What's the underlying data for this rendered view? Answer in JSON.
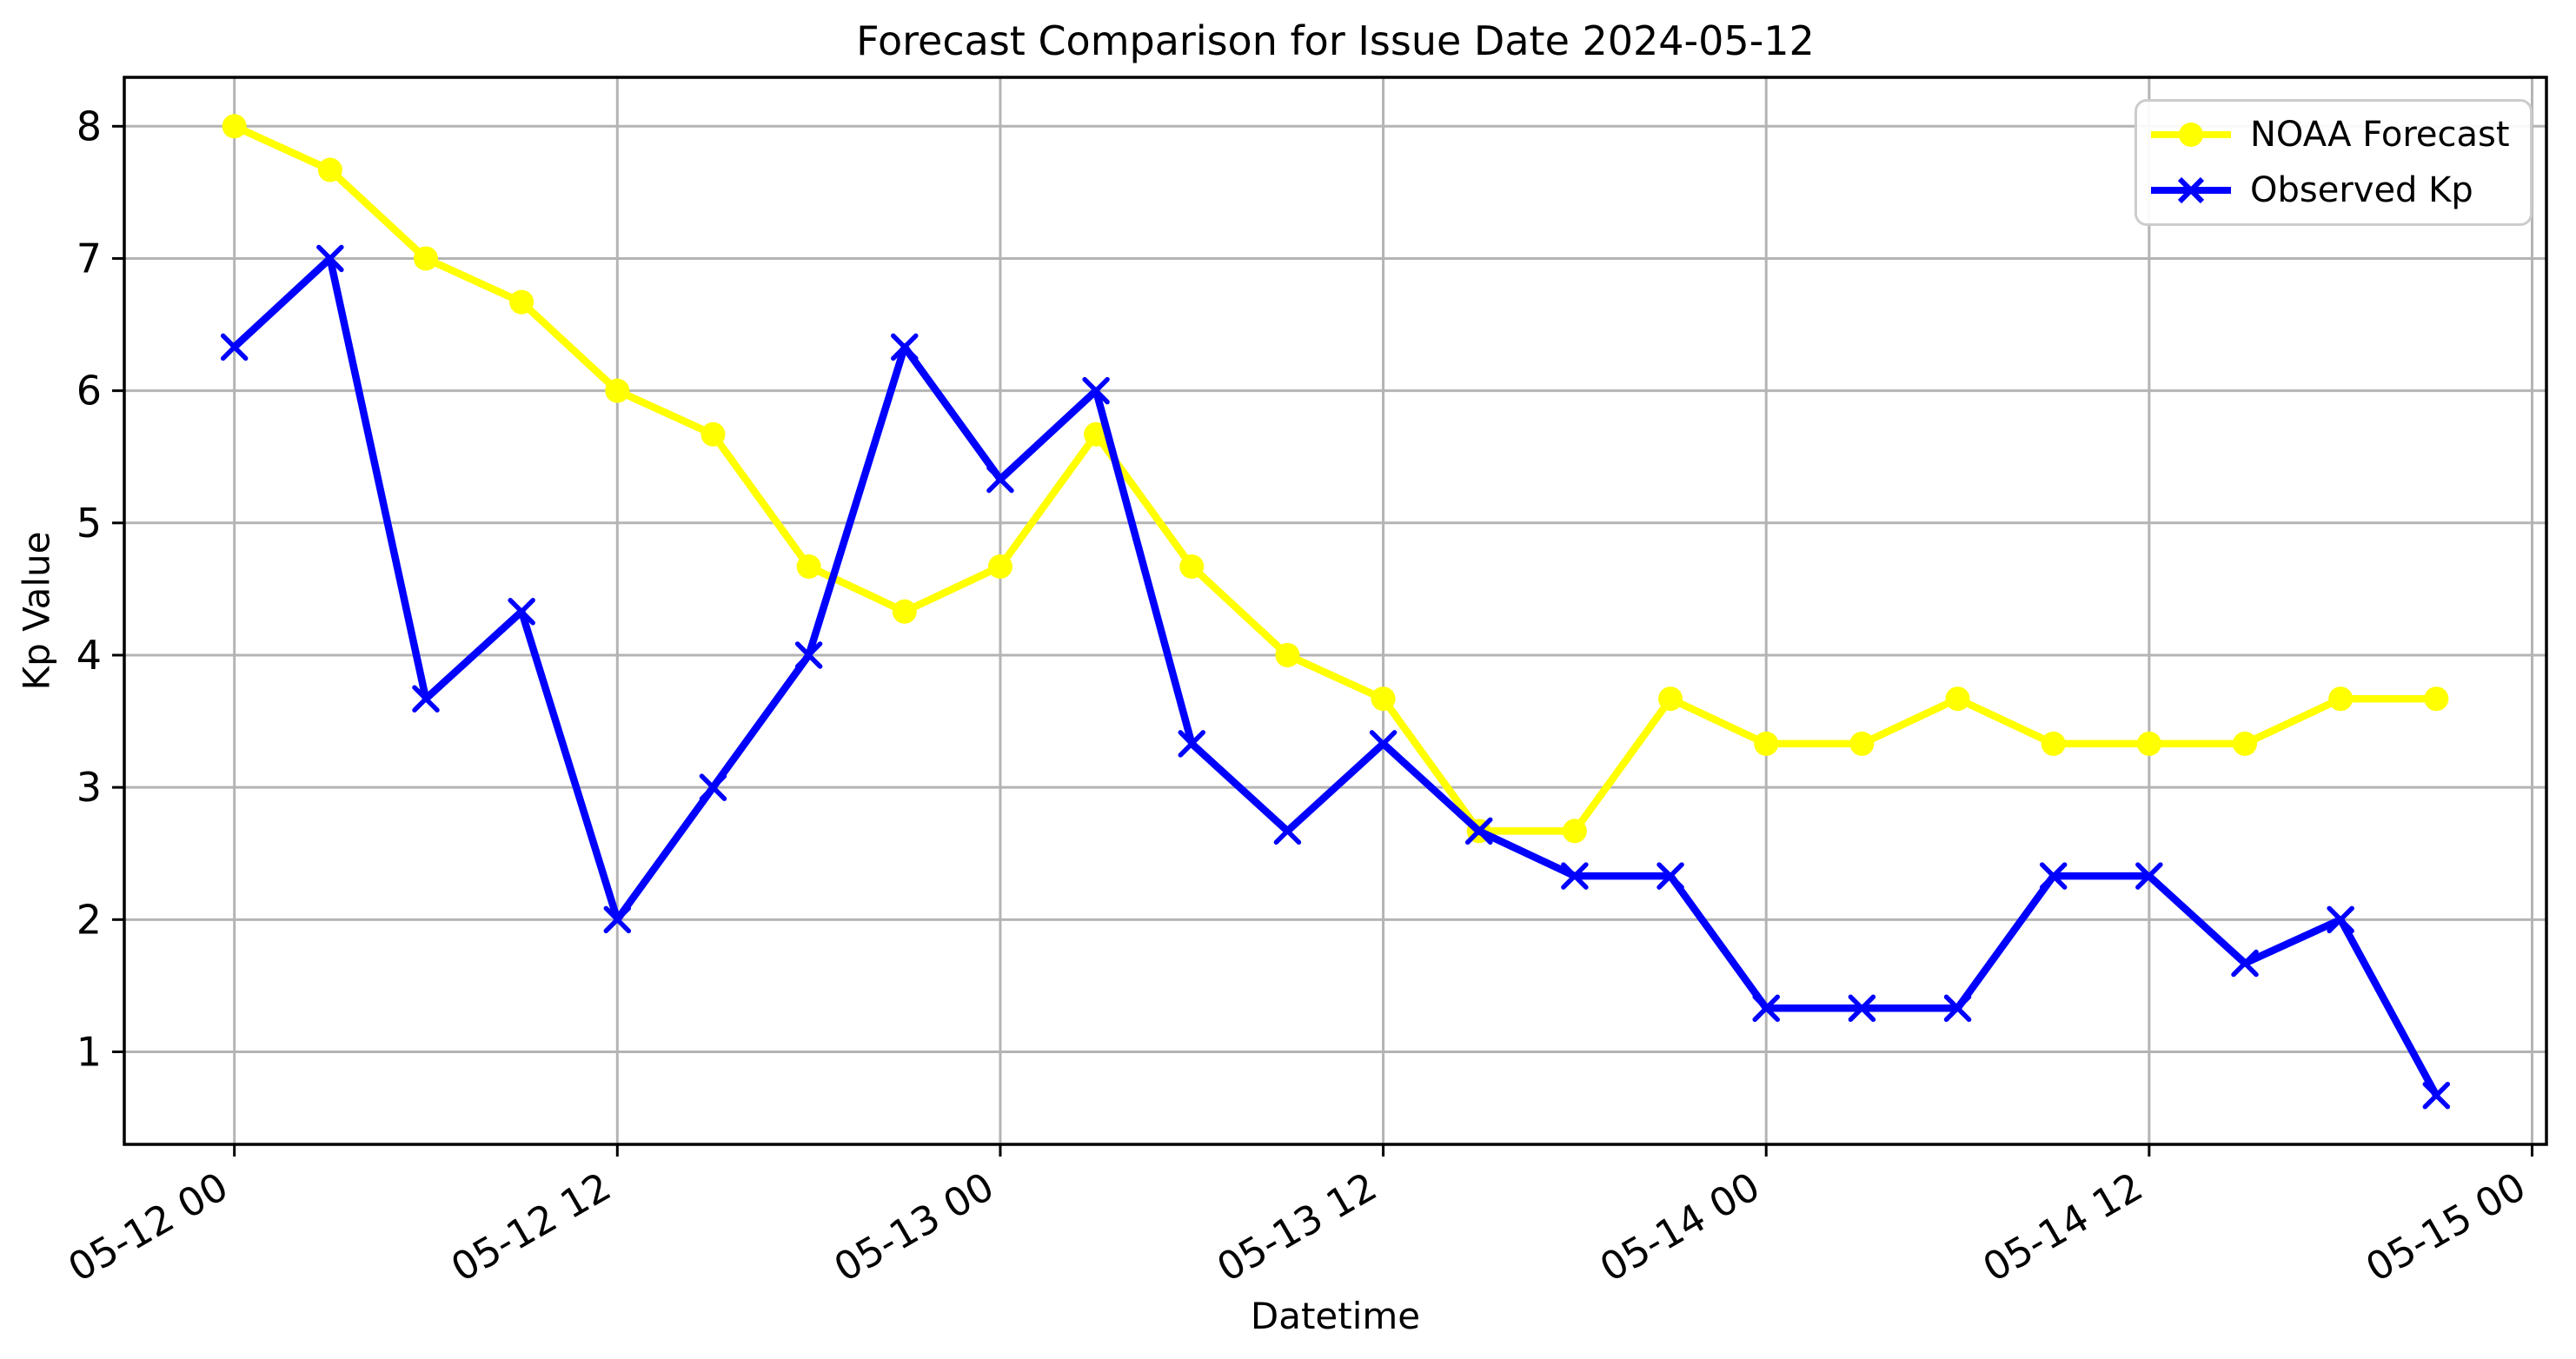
{
  "chart_data": {
    "type": "line",
    "title": "Forecast Comparison for Issue Date 2024-05-12",
    "xlabel": "Datetime",
    "ylabel": "Kp Value",
    "x_tick_labels": [
      "05-12 00",
      "05-12 12",
      "05-13 00",
      "05-13 12",
      "05-14 00",
      "05-14 12",
      "05-15 00"
    ],
    "x_tick_positions": [
      0,
      4,
      8,
      12,
      16,
      20,
      24
    ],
    "y_ticks": [
      1,
      2,
      3,
      4,
      5,
      6,
      7,
      8
    ],
    "xlim": [
      -1.15,
      24.15
    ],
    "ylim": [
      0.3,
      8.37
    ],
    "grid": true,
    "grid_color": "#b4b4b4",
    "legend_position": "upper right",
    "background_color": "#ffffff",
    "series": [
      {
        "name": "NOAA Forecast",
        "color": "#FFFF00",
        "marker": "circle",
        "values": [
          8.0,
          7.67,
          7.0,
          6.67,
          6.0,
          5.67,
          4.67,
          4.33,
          4.67,
          5.67,
          4.67,
          4.0,
          3.67,
          2.67,
          2.67,
          3.67,
          3.33,
          3.33,
          3.67,
          3.33,
          3.33,
          3.33,
          3.67,
          3.67
        ]
      },
      {
        "name": "Observed Kp",
        "color": "#0000FF",
        "marker": "x",
        "values": [
          6.33,
          7.0,
          3.67,
          4.33,
          2.0,
          3.0,
          4.0,
          6.33,
          5.33,
          6.0,
          3.33,
          2.67,
          3.33,
          2.67,
          2.33,
          2.33,
          1.33,
          1.33,
          1.33,
          2.33,
          2.33,
          1.67,
          2.0,
          0.67
        ]
      }
    ]
  }
}
